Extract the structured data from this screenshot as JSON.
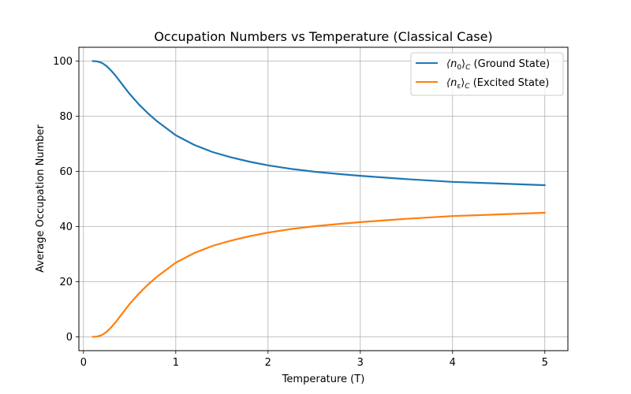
{
  "chart_data": {
    "type": "line",
    "title": "Occupation Numbers vs Temperature (Classical Case)",
    "xlabel": "Temperature (T)",
    "ylabel": "Average Occupation Number",
    "xlim": [
      -0.05,
      5.25
    ],
    "ylim": [
      -5,
      105
    ],
    "xticks": [
      0,
      1,
      2,
      3,
      4,
      5
    ],
    "yticks": [
      0,
      20,
      40,
      60,
      80,
      100
    ],
    "grid": true,
    "legend_position": "top-right",
    "series": [
      {
        "name": "⟨n₀⟩C (Ground State)",
        "legend_main": "⟨n",
        "legend_sub1": "0",
        "legend_close": "⟩",
        "legend_sub2": "C",
        "legend_rest": " (Ground State)",
        "color": "#1f77b4",
        "x": [
          0.1,
          0.15,
          0.2,
          0.25,
          0.3,
          0.35,
          0.4,
          0.45,
          0.5,
          0.6,
          0.7,
          0.8,
          0.9,
          1.0,
          1.2,
          1.4,
          1.6,
          1.8,
          2.0,
          2.25,
          2.5,
          2.75,
          3.0,
          3.5,
          4.0,
          4.5,
          5.0
        ],
        "y": [
          100.0,
          99.87,
          99.33,
          98.2,
          96.54,
          94.6,
          92.41,
          90.23,
          88.1,
          84.3,
          81.0,
          78.1,
          75.6,
          73.1,
          69.6,
          67.0,
          65.1,
          63.5,
          62.2,
          60.9,
          59.9,
          59.1,
          58.4,
          57.2,
          56.2,
          55.6,
          55.0
        ]
      },
      {
        "name": "⟨nε⟩C (Excited State)",
        "legend_main": "⟨n",
        "legend_sub1": "ε",
        "legend_close": "⟩",
        "legend_sub2": "C",
        "legend_rest": " (Excited State)",
        "color": "#ff7f0e",
        "x": [
          0.1,
          0.15,
          0.2,
          0.25,
          0.3,
          0.35,
          0.4,
          0.45,
          0.5,
          0.6,
          0.7,
          0.8,
          0.9,
          1.0,
          1.2,
          1.4,
          1.6,
          1.8,
          2.0,
          2.25,
          2.5,
          2.75,
          3.0,
          3.5,
          4.0,
          4.5,
          5.0
        ],
        "y": [
          0.0,
          0.13,
          0.67,
          1.8,
          3.46,
          5.4,
          7.59,
          9.77,
          11.9,
          15.7,
          19.0,
          21.9,
          24.4,
          26.9,
          30.4,
          33.0,
          34.9,
          36.5,
          37.8,
          39.1,
          40.1,
          40.9,
          41.6,
          42.8,
          43.8,
          44.4,
          45.0
        ]
      }
    ]
  }
}
